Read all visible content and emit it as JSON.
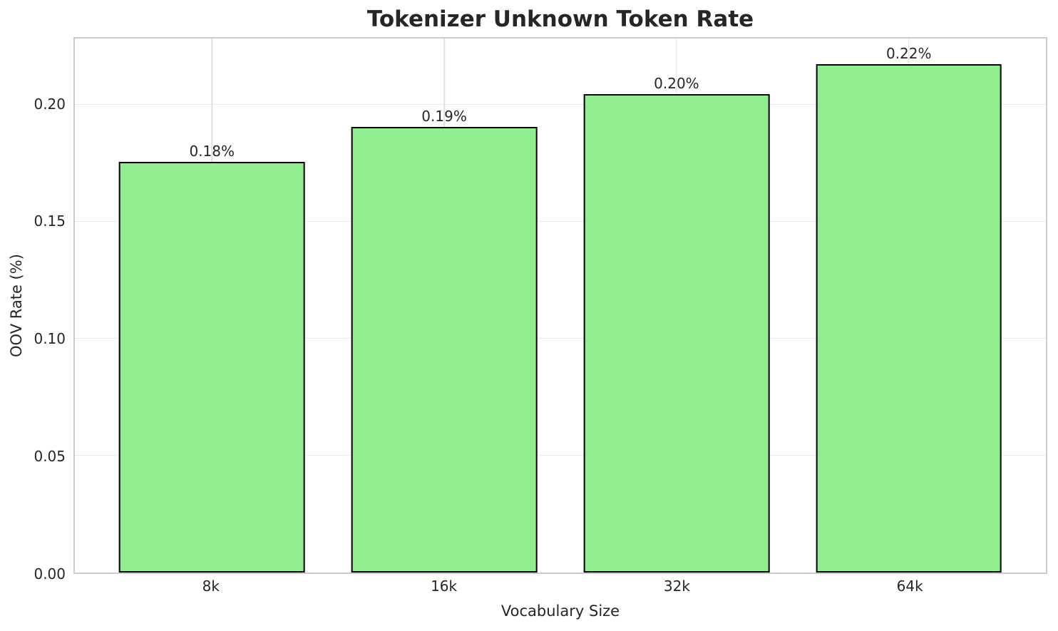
{
  "chart_data": {
    "type": "bar",
    "title": "Tokenizer Unknown Token Rate",
    "xlabel": "Vocabulary Size",
    "ylabel": "OOV Rate (%)",
    "categories": [
      "8k",
      "16k",
      "32k",
      "64k"
    ],
    "values": [
      0.1755,
      0.1905,
      0.2045,
      0.2175
    ],
    "bar_labels": [
      "0.18%",
      "0.19%",
      "0.20%",
      "0.22%"
    ],
    "ylim": [
      0,
      0.2284
    ],
    "yticks": [
      0,
      0.05,
      0.1,
      0.15,
      0.2
    ],
    "ytick_labels": [
      "0.00",
      "0.05",
      "0.10",
      "0.15",
      "0.20"
    ],
    "grid": true,
    "legend_position": "none",
    "colors": {
      "bar_fill": "#90EE90",
      "bar_edge": "#000000",
      "grid_h": "#e9e9e9",
      "grid_v": "#e0e0e0",
      "spine": "#cccccc",
      "text": "#262626",
      "background": "#ffffff"
    }
  }
}
